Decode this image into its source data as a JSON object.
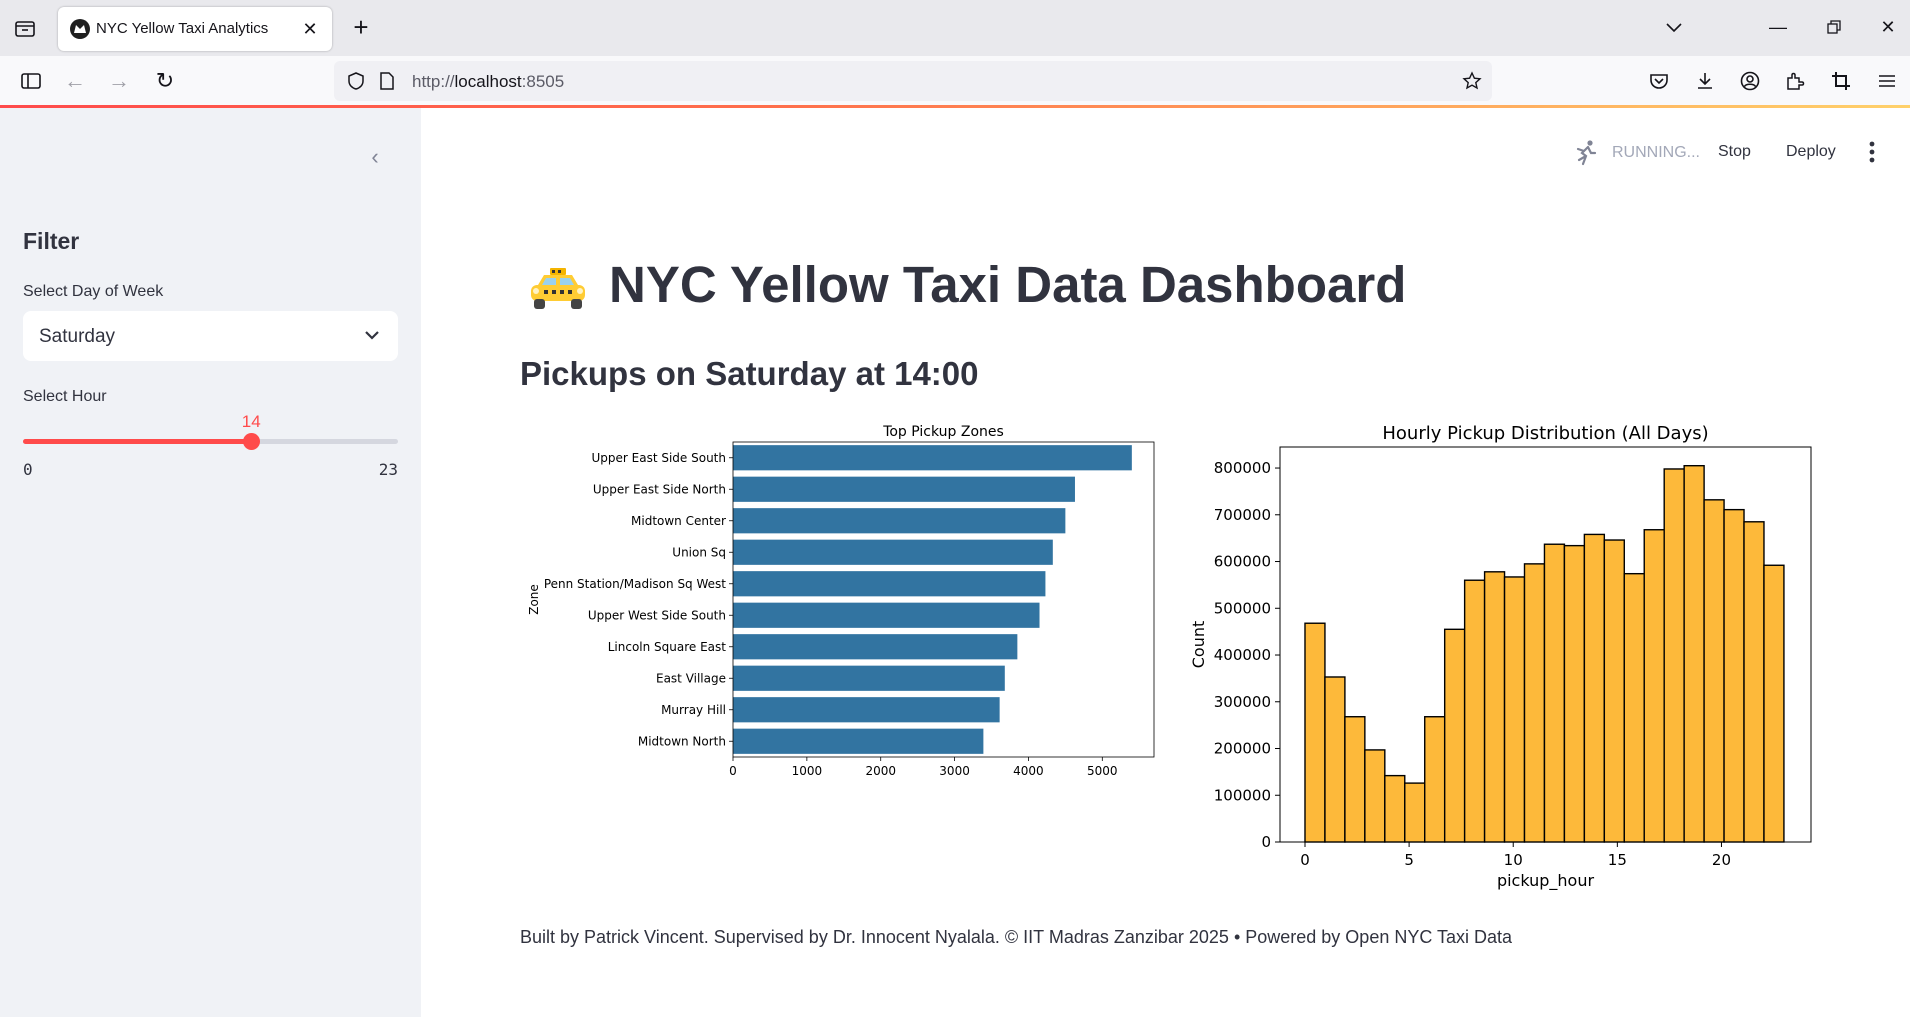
{
  "browser": {
    "tab_title": "NYC Yellow Taxi Analytics",
    "url_prefix": "http://",
    "url_host": "localhost",
    "url_port": ":8505"
  },
  "sidebar": {
    "heading": "Filter",
    "day_label": "Select Day of Week",
    "day_value": "Saturday",
    "hour_label": "Select Hour",
    "hour_min": 0,
    "hour_max": 23,
    "hour_value": 14,
    "accent_color": "#ff4b4b"
  },
  "header": {
    "status": "RUNNING...",
    "stop_label": "Stop",
    "deploy_label": "Deploy"
  },
  "main": {
    "title": "NYC Yellow Taxi Data Dashboard",
    "subtitle": "Pickups on Saturday at 14:00",
    "footer": "Built by Patrick Vincent. Supervised by Dr. Innocent Nyalala. © IIT Madras Zanzibar 2025 • Powered by Open NYC Taxi Data"
  },
  "chart_data": [
    {
      "type": "bar",
      "orientation": "horizontal",
      "title": "Top Pickup Zones",
      "xlabel": "",
      "ylabel": "Zone",
      "categories": [
        "Upper East Side South",
        "Upper East Side North",
        "Midtown Center",
        "Union Sq",
        "Penn Station/Madison Sq West",
        "Upper West Side South",
        "Lincoln Square East",
        "East Village",
        "Murray Hill",
        "Midtown North"
      ],
      "values": [
        5400,
        4630,
        4500,
        4330,
        4230,
        4150,
        3850,
        3680,
        3610,
        3390
      ],
      "xlim": [
        0,
        5700
      ],
      "xticks": [
        0,
        1000,
        2000,
        3000,
        4000,
        5000
      ],
      "color": "#3274a1"
    },
    {
      "type": "bar",
      "subtype": "histogram",
      "title": "Hourly Pickup Distribution (All Days)",
      "xlabel": "pickup_hour",
      "ylabel": "Count",
      "x": [
        0,
        1,
        2,
        3,
        4,
        5,
        6,
        7,
        8,
        9,
        10,
        11,
        12,
        13,
        14,
        15,
        16,
        17,
        18,
        19,
        20,
        21,
        22,
        23
      ],
      "values": [
        468000,
        353000,
        268000,
        197000,
        142000,
        126000,
        268000,
        455000,
        560000,
        578000,
        567000,
        595000,
        637000,
        634000,
        658000,
        646000,
        574000,
        668000,
        798000,
        805000,
        732000,
        711000,
        685000,
        592000
      ],
      "xlim": [
        -1.2,
        24.3
      ],
      "ylim": [
        0,
        845000
      ],
      "xticks": [
        0,
        5,
        10,
        15,
        20
      ],
      "yticks": [
        0,
        100000,
        200000,
        300000,
        400000,
        500000,
        600000,
        700000,
        800000
      ],
      "color": "#fdb93a"
    }
  ]
}
